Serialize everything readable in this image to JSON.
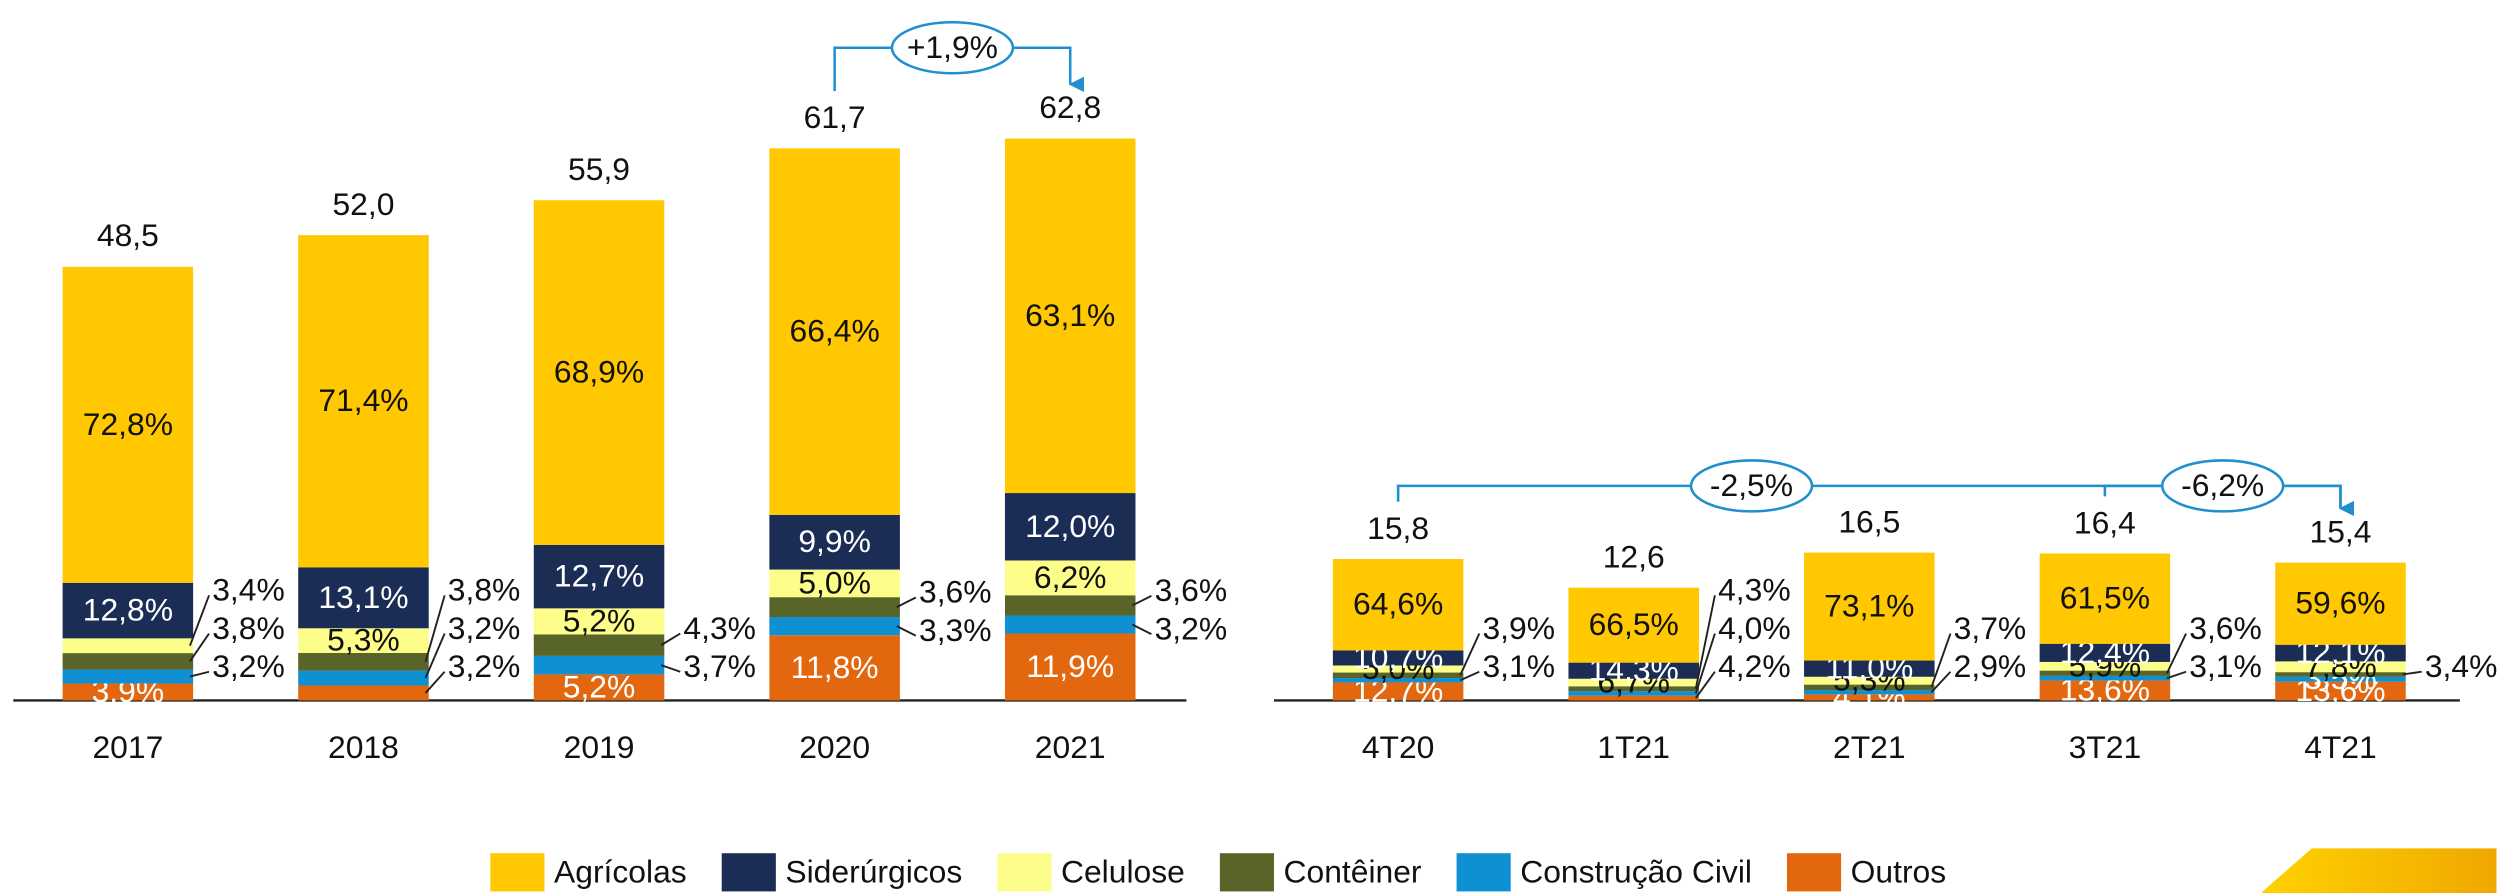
{
  "chart_data": {
    "type": "bar",
    "stacked": true,
    "categories": [
      "2017",
      "2018",
      "2019",
      "2020",
      "2021",
      "4T20",
      "1T21",
      "2T21",
      "3T21",
      "4T21"
    ],
    "totals": {
      "values": [
        48.5,
        52.0,
        55.9,
        61.7,
        62.8,
        15.8,
        12.6,
        16.5,
        16.4,
        15.4
      ],
      "value_labels": [
        "48,5",
        "52,0",
        "55,9",
        "61,7",
        "62,8",
        "15,8",
        "12,6",
        "16,5",
        "16,4",
        "15,4"
      ]
    },
    "series": [
      {
        "name": "Outros",
        "color": "#e3670f",
        "values": [
          3.9,
          3.2,
          5.2,
          11.8,
          11.9,
          12.7,
          4.2,
          4.1,
          13.6,
          13.6
        ],
        "value_labels": [
          "3,9%",
          "3,2%",
          "5,2%",
          "11,8%",
          "11,9%",
          "12,7%",
          "4,2%",
          "4,1%",
          "13,6%",
          "13,6%"
        ]
      },
      {
        "name": "Construção Civil",
        "color": "#0e90d2",
        "values": [
          3.2,
          3.2,
          3.7,
          3.3,
          3.2,
          3.1,
          4.0,
          2.9,
          3.1,
          3.5
        ],
        "value_labels": [
          "3,2%",
          "3,2%",
          "3,7%",
          "3,3%",
          "3,2%",
          "3,1%",
          "4,0%",
          "2,9%",
          "3,1%",
          "3,5%"
        ]
      },
      {
        "name": "Contêiner",
        "color": "#586428",
        "values": [
          3.8,
          3.8,
          4.3,
          3.6,
          3.6,
          3.9,
          4.3,
          3.7,
          3.6,
          3.4
        ],
        "value_labels": [
          "3,8%",
          "3,8%",
          "4,3%",
          "3,6%",
          "3,6%",
          "3,9%",
          "4,3%",
          "3,7%",
          "3,6%",
          "3,4%"
        ]
      },
      {
        "name": "Celulose",
        "color": "#fdfd8a",
        "values": [
          3.4,
          5.3,
          5.2,
          5.0,
          6.2,
          5.0,
          6.7,
          5.3,
          5.9,
          7.8
        ],
        "value_labels": [
          "3,4%",
          "5,3%",
          "5,2%",
          "5,0%",
          "6,2%",
          "5,0%",
          "6,7%",
          "5,3%",
          "5,9%",
          "7,8%"
        ]
      },
      {
        "name": "Siderúrgicos",
        "color": "#1b2d55",
        "values": [
          12.8,
          13.1,
          12.7,
          9.9,
          12.0,
          10.7,
          14.3,
          11.0,
          12.4,
          12.1
        ],
        "value_labels": [
          "12,8%",
          "13,1%",
          "12,7%",
          "9,9%",
          "12,0%",
          "10,7%",
          "14,3%",
          "11,0%",
          "12,4%",
          "12,1%"
        ]
      },
      {
        "name": "Agrícolas",
        "color": "#ffc800",
        "values": [
          72.8,
          71.4,
          68.9,
          66.4,
          63.1,
          64.6,
          66.5,
          73.1,
          61.5,
          59.6
        ],
        "value_labels": [
          "72,8%",
          "71,4%",
          "68,9%",
          "66,4%",
          "63,1%",
          "64,6%",
          "66,5%",
          "73,1%",
          "61,5%",
          "59,6%"
        ]
      }
    ],
    "annotations": [
      {
        "label": "+1,9%",
        "from": "2020",
        "to": "2021"
      },
      {
        "label": "-2,5%",
        "from": "4T20",
        "to": "4T21"
      },
      {
        "label": "-6,2%",
        "from": "3T21",
        "to": "4T21"
      }
    ],
    "legend": "bottom"
  }
}
